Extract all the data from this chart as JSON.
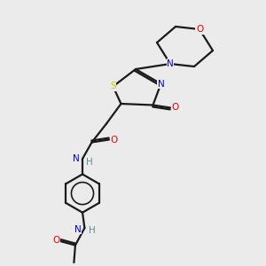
{
  "bg_color": "#ebebeb",
  "bond_color": "#1a1a1a",
  "atom_colors": {
    "N": "#0000ee",
    "O": "#ee0000",
    "S": "#cccc00",
    "C": "#1a1a1a",
    "H": "#5a9090"
  },
  "figsize": [
    3.0,
    3.0
  ],
  "dpi": 100,
  "lw": 1.6,
  "fs": 7.5
}
